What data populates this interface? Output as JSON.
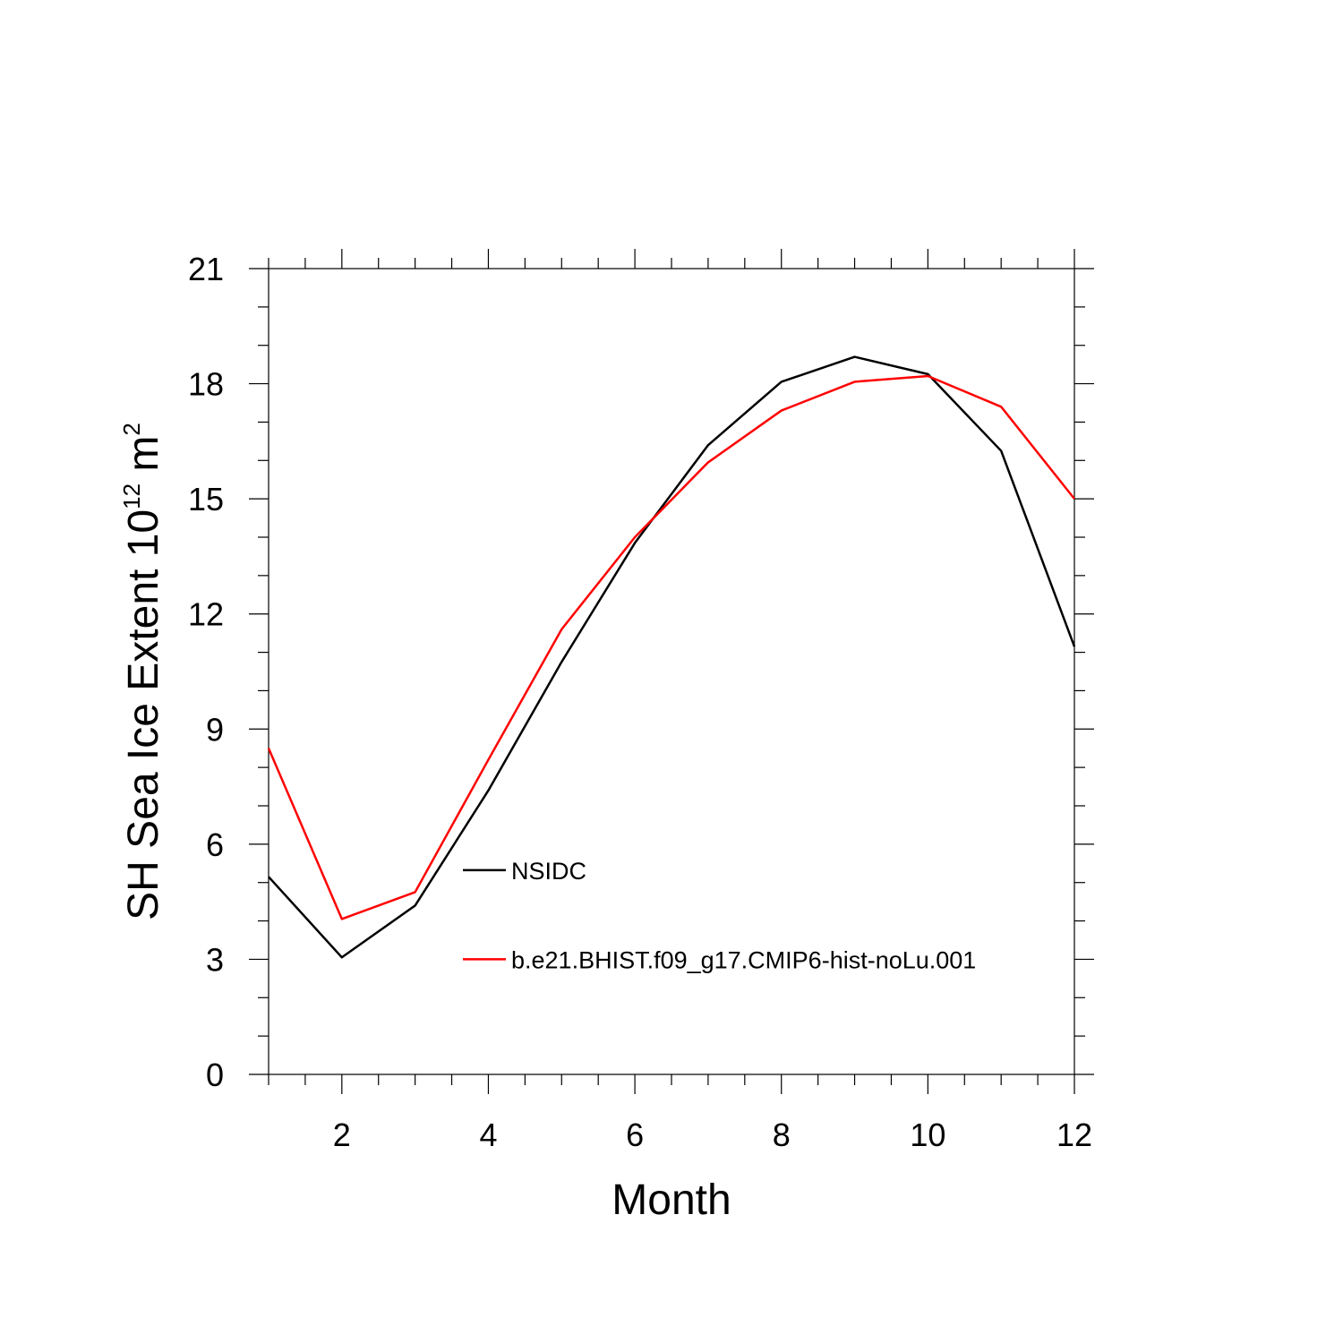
{
  "chart_data": {
    "type": "line",
    "xlabel": "Month",
    "ylabel": {
      "prefix": "SH Sea Ice Extent 10",
      "superscript1": "12",
      "unit": " m",
      "superscript2": "2"
    },
    "xlim": [
      1,
      12
    ],
    "ylim": [
      0,
      21
    ],
    "x_ticks": [
      2,
      4,
      6,
      8,
      10,
      12
    ],
    "y_ticks": [
      0,
      3,
      6,
      9,
      12,
      15,
      18,
      21
    ],
    "x": [
      1,
      2,
      3,
      4,
      5,
      6,
      7,
      8,
      9,
      10,
      11,
      12
    ],
    "series": [
      {
        "name": "NSIDC",
        "color": "#000000",
        "values": [
          5.15,
          3.05,
          4.4,
          7.4,
          10.75,
          13.85,
          16.4,
          18.05,
          18.7,
          18.25,
          16.25,
          11.15
        ]
      },
      {
        "name": "b.e21.BHIST.f09_g17.CMIP6-hist-noLu.001",
        "color": "#ff0000",
        "values": [
          8.5,
          4.05,
          4.75,
          8.2,
          11.6,
          14.0,
          15.95,
          17.3,
          18.05,
          18.2,
          17.4,
          15.0
        ]
      }
    ],
    "legend_position": "bottom-center inside plot",
    "grid": false
  }
}
